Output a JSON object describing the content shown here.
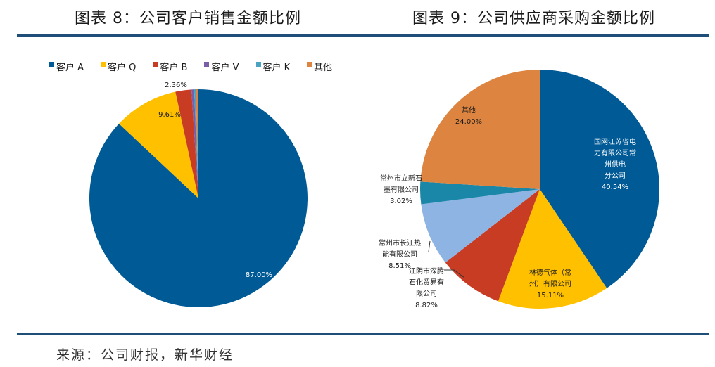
{
  "footer": {
    "source": "来源：公司财报，新华财经"
  },
  "chart_data": [
    {
      "type": "pie",
      "title": "图表 8：公司客户销售金额比例",
      "legend_position": "top",
      "slices": [
        {
          "name": "客户 A",
          "value": 87.0,
          "label": "87.00%",
          "color": "#005a96",
          "text_color": "#ffffff"
        },
        {
          "name": "客户 Q",
          "value": 9.61,
          "label": "9.61%",
          "color": "#ffc000",
          "text_color": "#1a1a1a"
        },
        {
          "name": "客户 B",
          "value": 2.36,
          "label": "2.36%",
          "color": "#c83c23",
          "text_color": "#1a1a1a"
        },
        {
          "name": "客户 V",
          "value": 0.4,
          "label": "",
          "color": "#7b5ea8",
          "text_color": "#1a1a1a"
        },
        {
          "name": "客户 K",
          "value": 0.25,
          "label": "",
          "color": "#4ba3c3",
          "text_color": "#1a1a1a"
        },
        {
          "name": "其他",
          "value": 0.38,
          "label": "",
          "color": "#dc8440",
          "text_color": "#1a1a1a"
        }
      ]
    },
    {
      "type": "pie",
      "title": "图表 9：公司供应商采购金额比例",
      "slices": [
        {
          "name": "国网江苏省电力有限公司常州供电分公司",
          "lines": [
            "国网江苏省电",
            "力有限公司常",
            "州供电",
            "分公司"
          ],
          "value": 40.54,
          "label": "40.54%",
          "color": "#005a96",
          "text_color": "#ffffff"
        },
        {
          "name": "林德气体（常州）有限公司",
          "lines": [
            "林德气体（常",
            "州）有限公司"
          ],
          "value": 15.11,
          "label": "15.11%",
          "color": "#ffc000",
          "text_color": "#1a1a1a"
        },
        {
          "name": "江阴市深腾石化贸易有限公司",
          "lines": [
            "江阴市深腾",
            "石化贸易有",
            "限公司"
          ],
          "value": 8.82,
          "label": "8.82%",
          "color": "#c83c23",
          "text_color": "#1a1a1a"
        },
        {
          "name": "常州市长江热能有限公司",
          "lines": [
            "常州市长江热",
            "能有限公司"
          ],
          "value": 8.51,
          "label": "8.51%",
          "color": "#8eb4e3",
          "text_color": "#1a1a1a"
        },
        {
          "name": "常州市立新石墨有限公司",
          "lines": [
            "常州市立新石",
            "墨有限公司"
          ],
          "value": 3.02,
          "label": "3.02%",
          "color": "#1a87a8",
          "text_color": "#1a1a1a"
        },
        {
          "name": "其他",
          "lines": [
            "其他"
          ],
          "value": 24.0,
          "label": "24.00%",
          "color": "#dc8440",
          "text_color": "#1a1a1a"
        }
      ]
    }
  ]
}
